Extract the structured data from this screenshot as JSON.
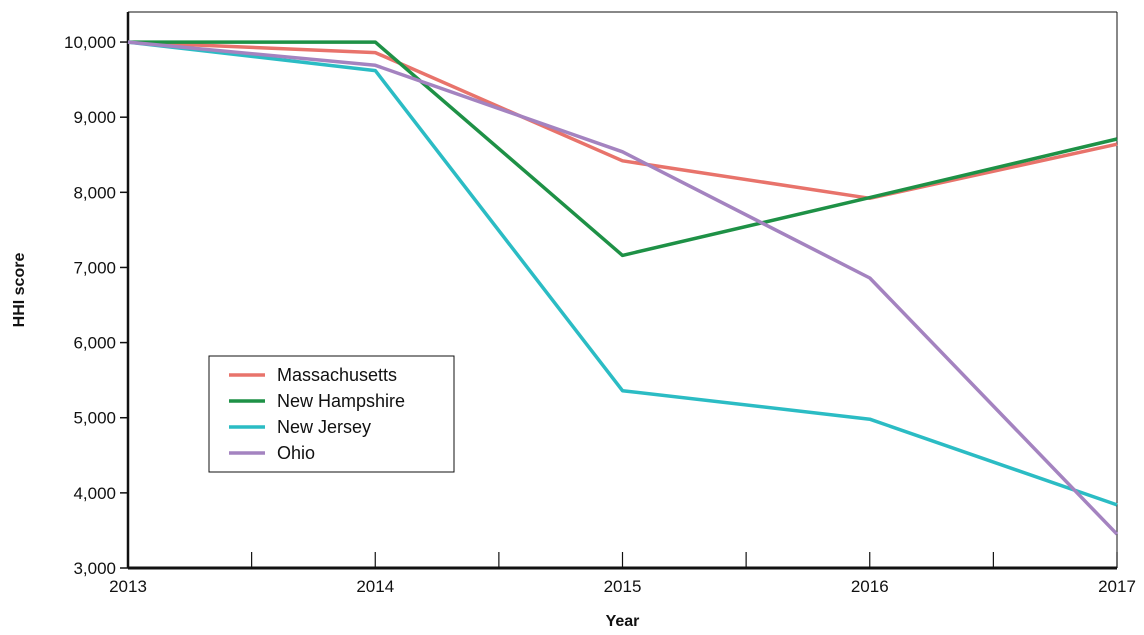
{
  "chart_data": {
    "type": "line",
    "title": "",
    "xlabel": "Year",
    "ylabel": "HHI score",
    "x": [
      2013,
      2014,
      2015,
      2016,
      2017
    ],
    "x_tick_labels": [
      "2013",
      "2014",
      "2015",
      "2016",
      "2017"
    ],
    "xlim": [
      2013,
      2017
    ],
    "ylim": [
      3000,
      10400
    ],
    "y_ticks": [
      3000,
      4000,
      5000,
      6000,
      7000,
      8000,
      9000,
      10000
    ],
    "y_tick_labels": [
      "3,000",
      "4,000",
      "5,000",
      "6,000",
      "7,000",
      "8,000",
      "9,000",
      "10,000"
    ],
    "grid": false,
    "legend_position": "lower-left",
    "series": [
      {
        "name": "Massachusetts",
        "color": "#e8736b",
        "values": [
          10000,
          9860,
          8420,
          7920,
          8640
        ]
      },
      {
        "name": "New Hampshire",
        "color": "#1e9146",
        "values": [
          10000,
          10000,
          7160,
          7930,
          8710
        ]
      },
      {
        "name": "New Jersey",
        "color": "#2bbcc4",
        "values": [
          10000,
          9620,
          5360,
          4980,
          3840
        ]
      },
      {
        "name": "Ohio",
        "color": "#a483c0",
        "values": [
          10000,
          9690,
          8540,
          6860,
          3450
        ]
      }
    ]
  }
}
